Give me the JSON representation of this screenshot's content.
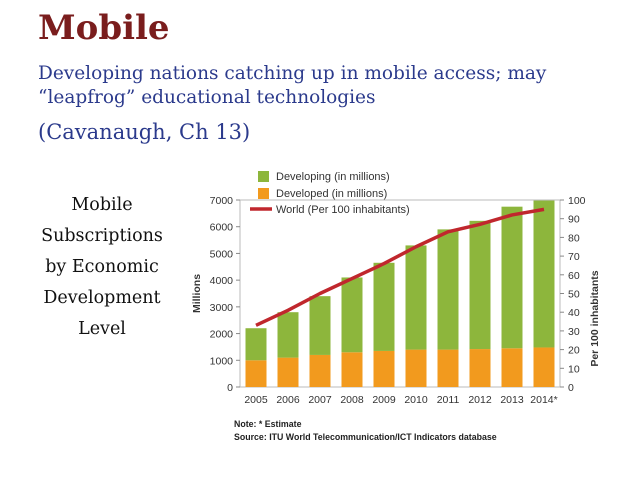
{
  "slide": {
    "title": "Mobile",
    "subtitle": "Developing nations catching up in mobile access; may “leapfrog” educational technologies",
    "citation": "(Cavanaugh, Ch 13)",
    "caption_lines": [
      "Mobile",
      "Subscriptions",
      "by Economic",
      "Development",
      "Level"
    ]
  },
  "chart_data": {
    "type": "bar",
    "stacked": true,
    "categories": [
      "2005",
      "2006",
      "2007",
      "2008",
      "2009",
      "2010",
      "2011",
      "2012",
      "2013",
      "2014*"
    ],
    "series": [
      {
        "name": "Developing (in millions)",
        "color": "#8db63c",
        "values": [
          1200,
          1700,
          2200,
          2800,
          3300,
          3900,
          4500,
          4800,
          5300,
          5500
        ]
      },
      {
        "name": "Developed (in millions)",
        "color": "#f29a1e",
        "values": [
          1000,
          1100,
          1200,
          1300,
          1350,
          1400,
          1400,
          1420,
          1450,
          1480
        ]
      }
    ],
    "line": {
      "name": "World (Per 100 inhabitants)",
      "color": "#c0272d",
      "values": [
        33,
        41,
        50,
        58,
        66,
        75,
        83,
        87,
        92,
        95
      ]
    },
    "ylabel": "Millions",
    "y2label": "Per 100 inhabitants",
    "ylim": [
      0,
      7000
    ],
    "y2lim": [
      0,
      100
    ],
    "yticks": [
      0,
      1000,
      2000,
      3000,
      4000,
      5000,
      6000,
      7000
    ],
    "y2ticks": [
      0,
      10,
      20,
      30,
      40,
      50,
      60,
      70,
      80,
      90,
      100
    ],
    "legend_position": "top",
    "notes": [
      "Note: * Estimate",
      "Source: ITU World Telecommunication/ICT Indicators database"
    ]
  }
}
